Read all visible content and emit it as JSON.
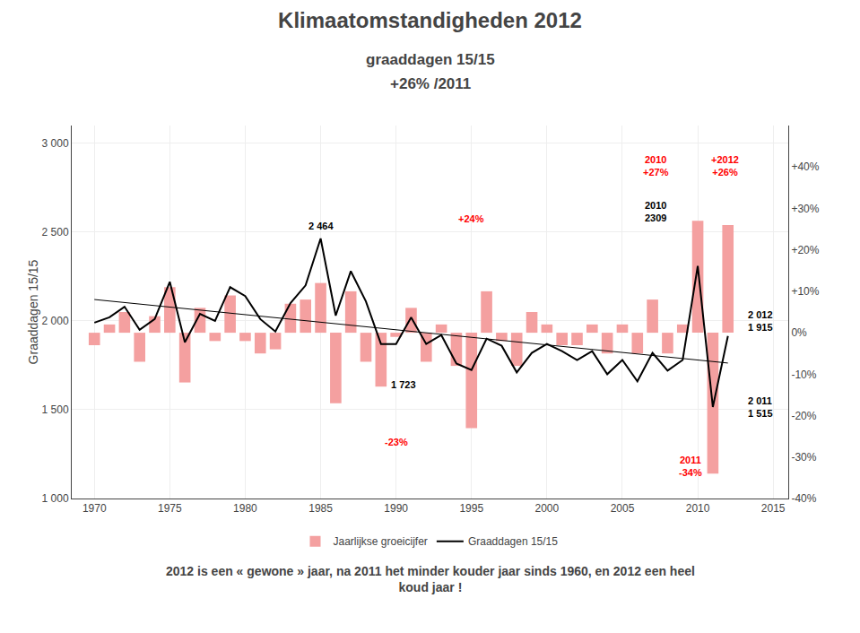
{
  "chart_data": {
    "type": "bar",
    "title": "Klimaatomstandigheden 2012",
    "subtitle": [
      "graaddagen 15/15",
      "+26% /2011"
    ],
    "ylabel": "Graaddagen 15/15",
    "footer": "2012 is een « gewone » jaar, na 2011 het minder kouder jaar sinds 1960, en 2012 een heel\nkoud jaar !",
    "x": [
      1970,
      1971,
      1972,
      1973,
      1974,
      1975,
      1976,
      1977,
      1978,
      1979,
      1980,
      1981,
      1982,
      1983,
      1984,
      1985,
      1986,
      1987,
      1988,
      1989,
      1990,
      1991,
      1992,
      1993,
      1994,
      1995,
      1996,
      1997,
      1998,
      1999,
      2000,
      2001,
      2002,
      2003,
      2004,
      2005,
      2006,
      2007,
      2008,
      2009,
      2010,
      2011,
      2012
    ],
    "series": [
      {
        "name": "Jaarlijkse groeicijfer",
        "type": "bar",
        "axis": "y2",
        "color": "#F4A0A0",
        "values": [
          -3,
          2,
          5,
          -7,
          4,
          11,
          -12,
          6,
          -2,
          9,
          -2,
          -5,
          -4,
          7,
          8,
          12,
          -17,
          10,
          -7,
          -13,
          -1,
          6,
          -7,
          2,
          -8,
          -23,
          10,
          -2,
          -8,
          5,
          2,
          -3,
          -3,
          2,
          -5,
          2,
          -5,
          8,
          -5,
          2,
          27,
          -34,
          26
        ]
      },
      {
        "name": "Graaddagen 15/15",
        "type": "line",
        "color": "#000000",
        "values": [
          1990,
          2020,
          2080,
          1950,
          2010,
          2220,
          1880,
          2040,
          2000,
          2190,
          2140,
          2010,
          1940,
          2100,
          2200,
          2464,
          2030,
          2280,
          2110,
          1870,
          1870,
          2020,
          1870,
          1920,
          1760,
          1723,
          1900,
          1860,
          1710,
          1820,
          1870,
          1830,
          1780,
          1830,
          1700,
          1780,
          1660,
          1820,
          1720,
          1780,
          2309,
          1515,
          1915
        ]
      },
      {
        "type": "line",
        "color": "#000000",
        "x": [
          1970,
          2012
        ],
        "values": [
          2120.349,
          1762.721
        ]
      }
    ],
    "xlim": [
      1968.5,
      2016
    ],
    "xticks": [
      1970,
      1975,
      1980,
      1985,
      1990,
      1995,
      2000,
      2005,
      2010,
      2015
    ],
    "ylim": [
      1000,
      3100
    ],
    "yticks": [
      {
        "value": 1000,
        "label": "1 000"
      },
      {
        "value": 1500,
        "label": "1 500"
      },
      {
        "value": 2000,
        "label": "2 000"
      },
      {
        "value": 2500,
        "label": "2 500"
      },
      {
        "value": 3000,
        "label": "3 000"
      }
    ],
    "y2lim": [
      -40,
      50
    ],
    "y2ticks": [
      {
        "value": -40,
        "label": "-40%"
      },
      {
        "value": -30,
        "label": "-30%"
      },
      {
        "value": -20,
        "label": "-20%"
      },
      {
        "value": -10,
        "label": "-10%"
      },
      {
        "value": 0,
        "label": "0%"
      },
      {
        "value": 10,
        "label": "+10%"
      },
      {
        "value": 20,
        "label": "+20%"
      },
      {
        "value": 30,
        "label": "+30%"
      },
      {
        "value": 40,
        "label": "+40%"
      }
    ],
    "grid": true,
    "legend": "bottom",
    "annotations": [
      {
        "text": "2 464",
        "x": 1985,
        "y": 2464,
        "axis": "y",
        "color": "#000000"
      },
      {
        "text": "1 723",
        "x": 1990,
        "y": 1723,
        "axis": "y",
        "color": "#000000"
      },
      {
        "text": "-23%",
        "x": 1990,
        "y": -23,
        "axis": "y2",
        "color": "red"
      },
      {
        "text": "+24%",
        "x": 1995,
        "y": 24,
        "axis": "y2",
        "color": "red"
      },
      {
        "text": "2010\n2309",
        "x": 2010,
        "y": 2309,
        "axis": "y",
        "color": "#000000"
      },
      {
        "text": "2010\n+27%",
        "x": 2010,
        "y": 27,
        "axis": "y2",
        "color": "red"
      },
      {
        "text": "+2012\n+26%",
        "x": 2012,
        "y": 26,
        "axis": "y2",
        "color": "red"
      },
      {
        "text": "2 012\n1 915",
        "x": 2013,
        "y": 1915,
        "axis": "y",
        "color": "#000000"
      },
      {
        "text": "2 011\n1 515",
        "x": 2011,
        "y": 1515,
        "axis": "y",
        "color": "#000000"
      },
      {
        "text": "2011\n-34%",
        "x": 2011,
        "y": -34,
        "axis": "y2",
        "color": "red"
      }
    ]
  }
}
